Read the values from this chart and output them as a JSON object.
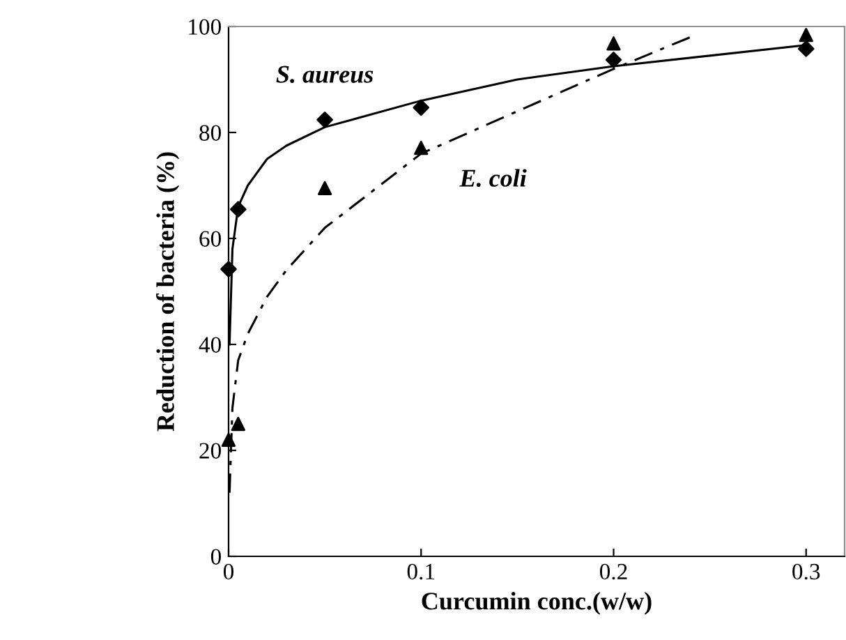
{
  "chart_data": {
    "type": "scatter",
    "xlabel": "Curcumin conc.(w/w)",
    "ylabel": "Reduction of bacteria (%)",
    "xlim": [
      0,
      0.32
    ],
    "ylim": [
      0,
      100
    ],
    "xticks": [
      0,
      0.1,
      0.2,
      0.3
    ],
    "yticks": [
      0,
      20,
      40,
      60,
      80,
      100
    ],
    "grid": false,
    "legend": false,
    "series": [
      {
        "name": "S. aureus",
        "marker": "diamond",
        "color": "#000000",
        "x": [
          0,
          0.005,
          0.05,
          0.1,
          0.2,
          0.3
        ],
        "values": [
          54.2,
          65.5,
          82.4,
          84.7,
          93.7,
          95.8
        ]
      },
      {
        "name": "E. coli",
        "marker": "triangle",
        "color": "#000000",
        "x": [
          0,
          0.005,
          0.05,
          0.1,
          0.2,
          0.3
        ],
        "values": [
          22,
          25,
          69.5,
          77.1,
          96.8,
          98.4
        ]
      },
      {
        "type": "line",
        "line_style": "solid",
        "marker": "none",
        "color": "#000000",
        "x": [
          0.0005,
          0.002,
          0.005,
          0.01,
          0.02,
          0.03,
          0.05,
          0.1,
          0.15,
          0.2,
          0.3
        ],
        "values": [
          40,
          58,
          66,
          70,
          75,
          77.5,
          81,
          86,
          90,
          92.5,
          96.5
        ]
      },
      {
        "type": "line",
        "line_style": "dashdot",
        "marker": "none",
        "color": "#000000",
        "x": [
          0.0005,
          0.002,
          0.005,
          0.01,
          0.02,
          0.03,
          0.05,
          0.1,
          0.15,
          0.2,
          0.24
        ],
        "values": [
          12,
          28,
          37,
          42,
          49,
          54,
          62,
          76,
          84,
          92,
          98
        ]
      }
    ]
  }
}
